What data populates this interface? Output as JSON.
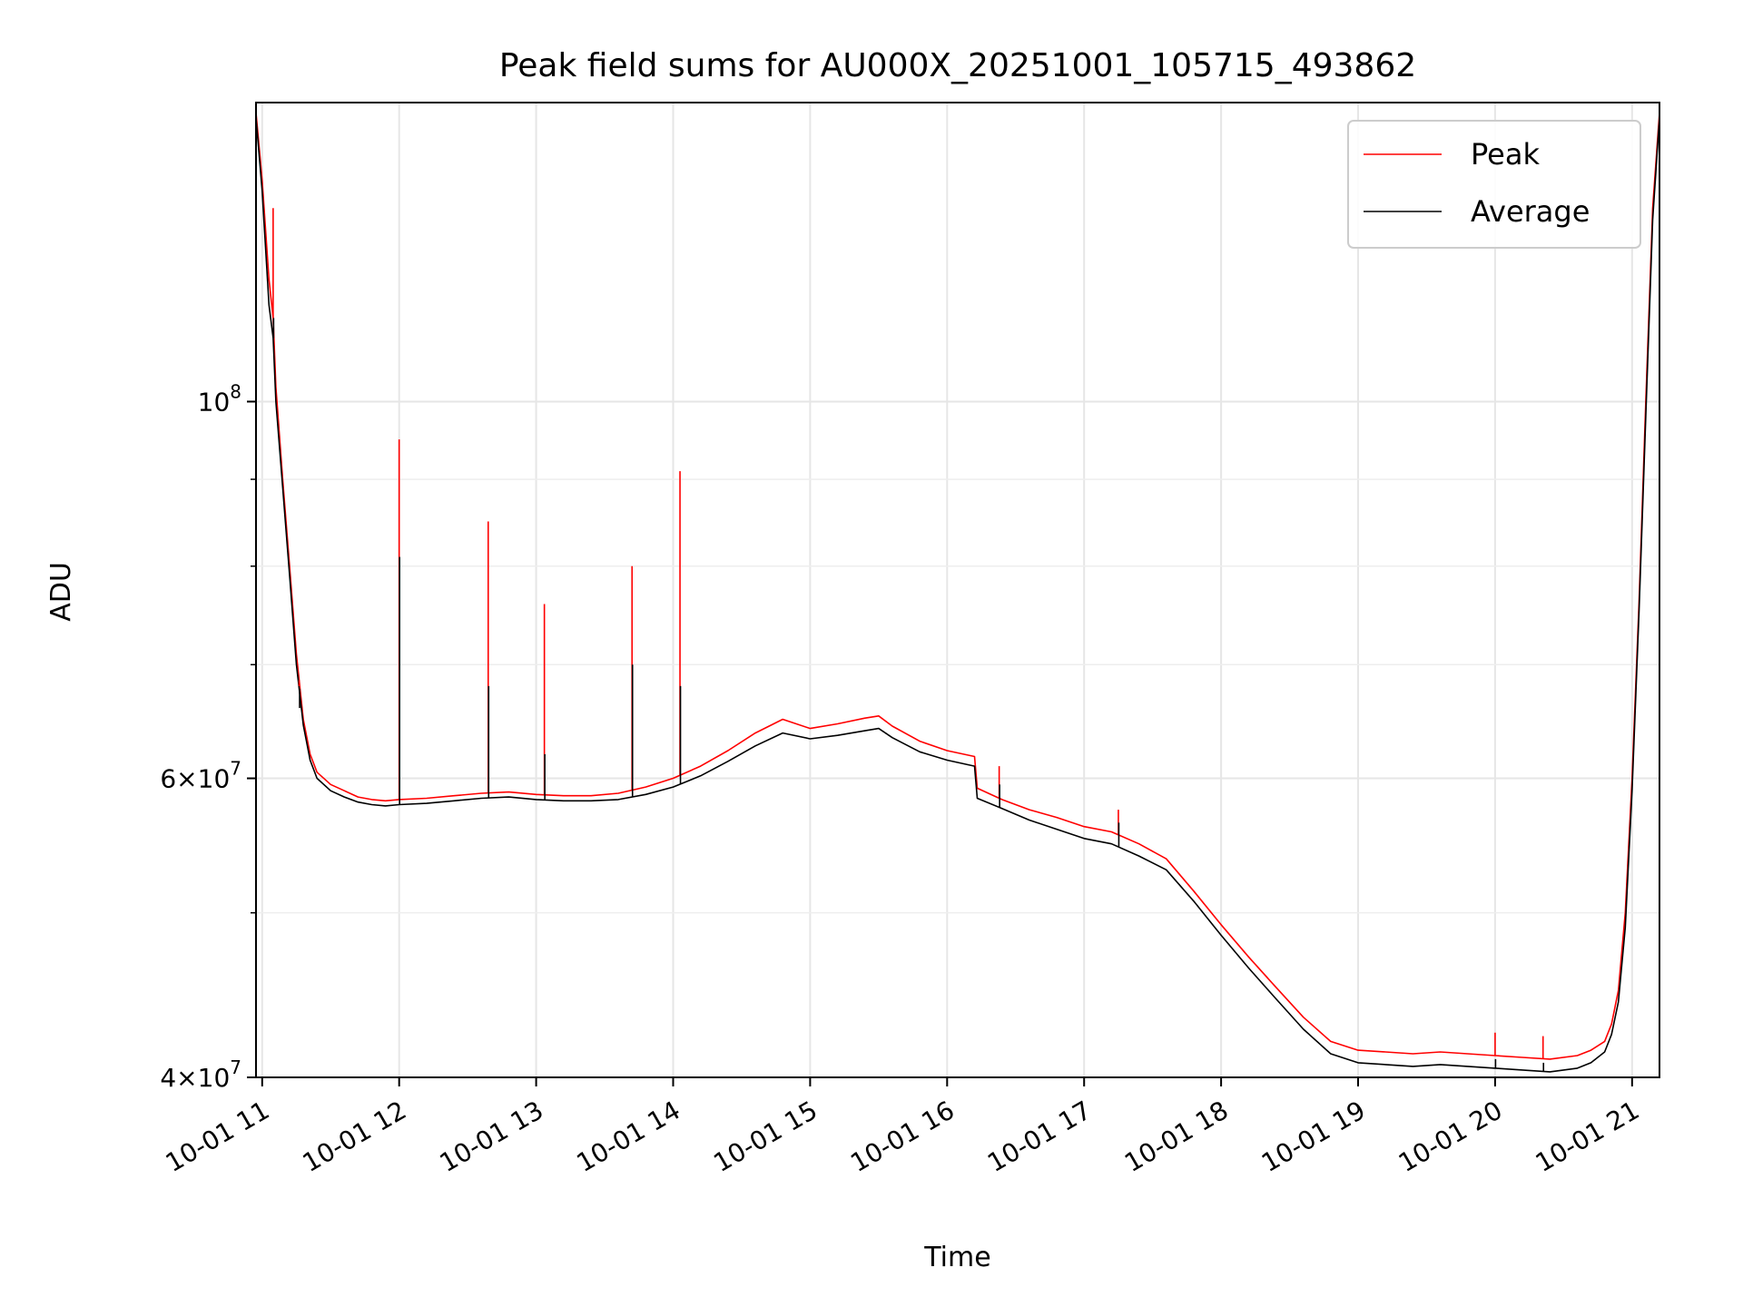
{
  "chart_data": {
    "type": "line",
    "title": "Peak field sums for AU000X_20251001_105715_493862",
    "xlabel": "Time",
    "ylabel": "ADU",
    "yscale": "log",
    "ylim": [
      40000000,
      150000000
    ],
    "xlim": [
      10.955,
      21.2
    ],
    "grid": true,
    "legend_position": "top-right",
    "x_ticks": [
      {
        "value": 11,
        "label": "10-01 11"
      },
      {
        "value": 12,
        "label": "10-01 12"
      },
      {
        "value": 13,
        "label": "10-01 13"
      },
      {
        "value": 14,
        "label": "10-01 14"
      },
      {
        "value": 15,
        "label": "10-01 15"
      },
      {
        "value": 16,
        "label": "10-01 16"
      },
      {
        "value": 17,
        "label": "10-01 17"
      },
      {
        "value": 18,
        "label": "10-01 18"
      },
      {
        "value": 19,
        "label": "10-01 19"
      },
      {
        "value": 20,
        "label": "10-01 20"
      },
      {
        "value": 21,
        "label": "10-01 21"
      }
    ],
    "y_major_ticks": [
      {
        "value": 40000000,
        "base": "4",
        "exp": "7"
      },
      {
        "value": 60000000,
        "base": "6",
        "exp": "7"
      },
      {
        "value": 100000000,
        "base": "",
        "exp": "8"
      }
    ],
    "y_minor_ticks": [
      50000000,
      70000000,
      80000000,
      90000000
    ],
    "series": [
      {
        "name": "Peak",
        "color": "#ff0000",
        "x": [
          10.955,
          11.0,
          11.05,
          11.08,
          11.1,
          11.15,
          11.2,
          11.25,
          11.3,
          11.35,
          11.4,
          11.5,
          11.6,
          11.7,
          11.8,
          11.9,
          12.0,
          12.2,
          12.4,
          12.6,
          12.8,
          13.0,
          13.2,
          13.4,
          13.6,
          13.8,
          14.0,
          14.2,
          14.4,
          14.6,
          14.8,
          15.0,
          15.2,
          15.4,
          15.5,
          15.6,
          15.8,
          16.0,
          16.2,
          16.22,
          16.4,
          16.6,
          16.8,
          17.0,
          17.2,
          17.4,
          17.6,
          17.8,
          18.0,
          18.2,
          18.4,
          18.6,
          18.8,
          19.0,
          19.2,
          19.4,
          19.6,
          19.8,
          20.0,
          20.2,
          20.4,
          20.6,
          20.7,
          20.8,
          20.85,
          20.9,
          20.95,
          21.0,
          21.05,
          21.1,
          21.15,
          21.2
        ],
        "y": [
          148000000,
          135000000,
          118000000,
          112000000,
          102000000,
          90000000,
          80000000,
          71000000,
          65000000,
          62000000,
          60500000,
          59500000,
          59000000,
          58500000,
          58300000,
          58200000,
          58300000,
          58400000,
          58600000,
          58800000,
          58900000,
          58700000,
          58600000,
          58600000,
          58800000,
          59300000,
          60000000,
          61000000,
          62300000,
          63800000,
          65000000,
          64200000,
          64600000,
          65100000,
          65300000,
          64400000,
          63100000,
          62300000,
          61800000,
          59200000,
          58300000,
          57500000,
          56900000,
          56200000,
          55800000,
          54900000,
          53800000,
          51500000,
          49200000,
          47100000,
          45200000,
          43400000,
          42000000,
          41500000,
          41400000,
          41300000,
          41400000,
          41300000,
          41200000,
          41100000,
          41000000,
          41200000,
          41500000,
          42000000,
          43000000,
          45000000,
          50000000,
          60000000,
          76000000,
          100000000,
          130000000,
          148000000
        ]
      },
      {
        "name": "Average",
        "color": "#000000",
        "x": [
          10.955,
          11.0,
          11.05,
          11.08,
          11.1,
          11.15,
          11.2,
          11.25,
          11.3,
          11.35,
          11.4,
          11.5,
          11.6,
          11.7,
          11.8,
          11.9,
          12.0,
          12.2,
          12.4,
          12.6,
          12.8,
          13.0,
          13.2,
          13.4,
          13.6,
          13.8,
          14.0,
          14.2,
          14.4,
          14.6,
          14.8,
          15.0,
          15.2,
          15.4,
          15.5,
          15.6,
          15.8,
          16.0,
          16.2,
          16.22,
          16.4,
          16.6,
          16.8,
          17.0,
          17.2,
          17.4,
          17.6,
          17.8,
          18.0,
          18.2,
          18.4,
          18.6,
          18.8,
          19.0,
          19.2,
          19.4,
          19.6,
          19.8,
          20.0,
          20.2,
          20.4,
          20.6,
          20.7,
          20.8,
          20.85,
          20.9,
          20.95,
          21.0,
          21.05,
          21.1,
          21.15,
          21.2
        ],
        "y": [
          147000000,
          133000000,
          114000000,
          109000000,
          100000000,
          89000000,
          79000000,
          70000000,
          64500000,
          61500000,
          60000000,
          59000000,
          58500000,
          58100000,
          57900000,
          57800000,
          57900000,
          58000000,
          58200000,
          58400000,
          58500000,
          58300000,
          58200000,
          58200000,
          58300000,
          58700000,
          59300000,
          60200000,
          61400000,
          62700000,
          63800000,
          63300000,
          63600000,
          64000000,
          64200000,
          63400000,
          62200000,
          61500000,
          61000000,
          58400000,
          57600000,
          56700000,
          56000000,
          55300000,
          54900000,
          54000000,
          53000000,
          50800000,
          48500000,
          46400000,
          44500000,
          42700000,
          41300000,
          40800000,
          40700000,
          40600000,
          40700000,
          40600000,
          40500000,
          40400000,
          40300000,
          40500000,
          40800000,
          41400000,
          42400000,
          44300000,
          49000000,
          59000000,
          75000000,
          98000000,
          128000000,
          147000000
        ]
      }
    ],
    "spikes": [
      {
        "x": 12.0,
        "peak": 95000000,
        "average": 81000000
      },
      {
        "x": 12.65,
        "peak": 85000000,
        "average": 68000000
      },
      {
        "x": 13.06,
        "peak": 76000000,
        "average": 62000000
      },
      {
        "x": 13.7,
        "peak": 80000000,
        "average": 70000000
      },
      {
        "x": 14.05,
        "peak": 91000000,
        "average": 68000000
      },
      {
        "x": 11.08,
        "peak": 130000000,
        "average": 112000000
      },
      {
        "x": 11.27,
        "peak": 68000000,
        "average": 66000000
      },
      {
        "x": 16.38,
        "peak": 61000000,
        "average": 59500000
      },
      {
        "x": 17.25,
        "peak": 57500000,
        "average": 56500000
      },
      {
        "x": 20.0,
        "peak": 42500000,
        "average": 41000000
      },
      {
        "x": 20.35,
        "peak": 42300000,
        "average": 40800000
      }
    ]
  }
}
